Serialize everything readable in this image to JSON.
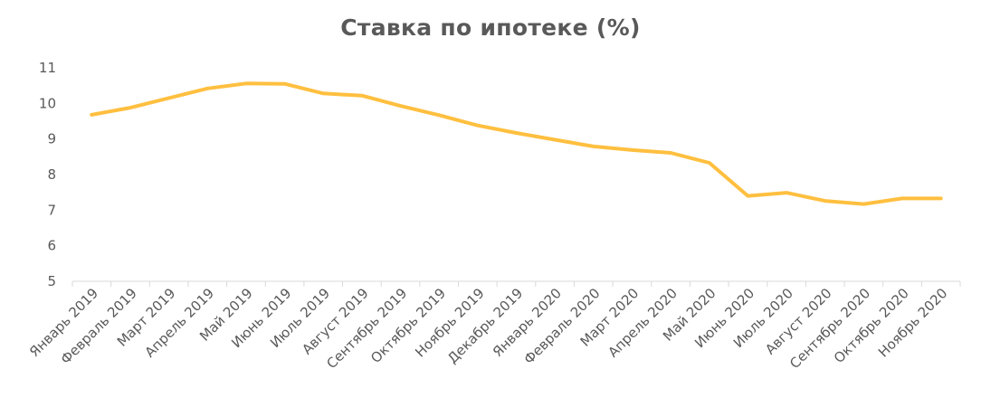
{
  "chart_data": {
    "type": "line",
    "title": "Ставка по ипотеке (%)",
    "xlabel": "",
    "ylabel": "",
    "ylim": [
      5,
      11
    ],
    "y_ticks": [
      5,
      6,
      7,
      8,
      9,
      10,
      11
    ],
    "grid": false,
    "legend": "none",
    "line_color": "#FFBF3F",
    "categories": [
      "Январь 2019",
      "Февраль 2019",
      "Март 2019",
      "Апрель 2019",
      "Май 2019",
      "Июнь 2019",
      "Июль 2019",
      "Август 2019",
      "Сентябрь 2019",
      "Октябрь 2019",
      "Ноябрь 2019",
      "Декабрь 2019",
      "Январь 2020",
      "Февраль 2020",
      "Март 2020",
      "Апрель 2020",
      "Май 2020",
      "Июнь 2020",
      "Июль 2020",
      "Август 2020",
      "Сентябрь 2020",
      "Октябрь 2020",
      "Ноябрь 2020"
    ],
    "series": [
      {
        "values": [
          9.68,
          9.88,
          10.15,
          10.42,
          10.56,
          10.55,
          10.28,
          10.22,
          9.93,
          9.67,
          9.38,
          9.17,
          8.98,
          8.79,
          8.69,
          8.61,
          8.33,
          7.4,
          7.49,
          7.26,
          7.17,
          7.33,
          7.33
        ]
      }
    ]
  }
}
